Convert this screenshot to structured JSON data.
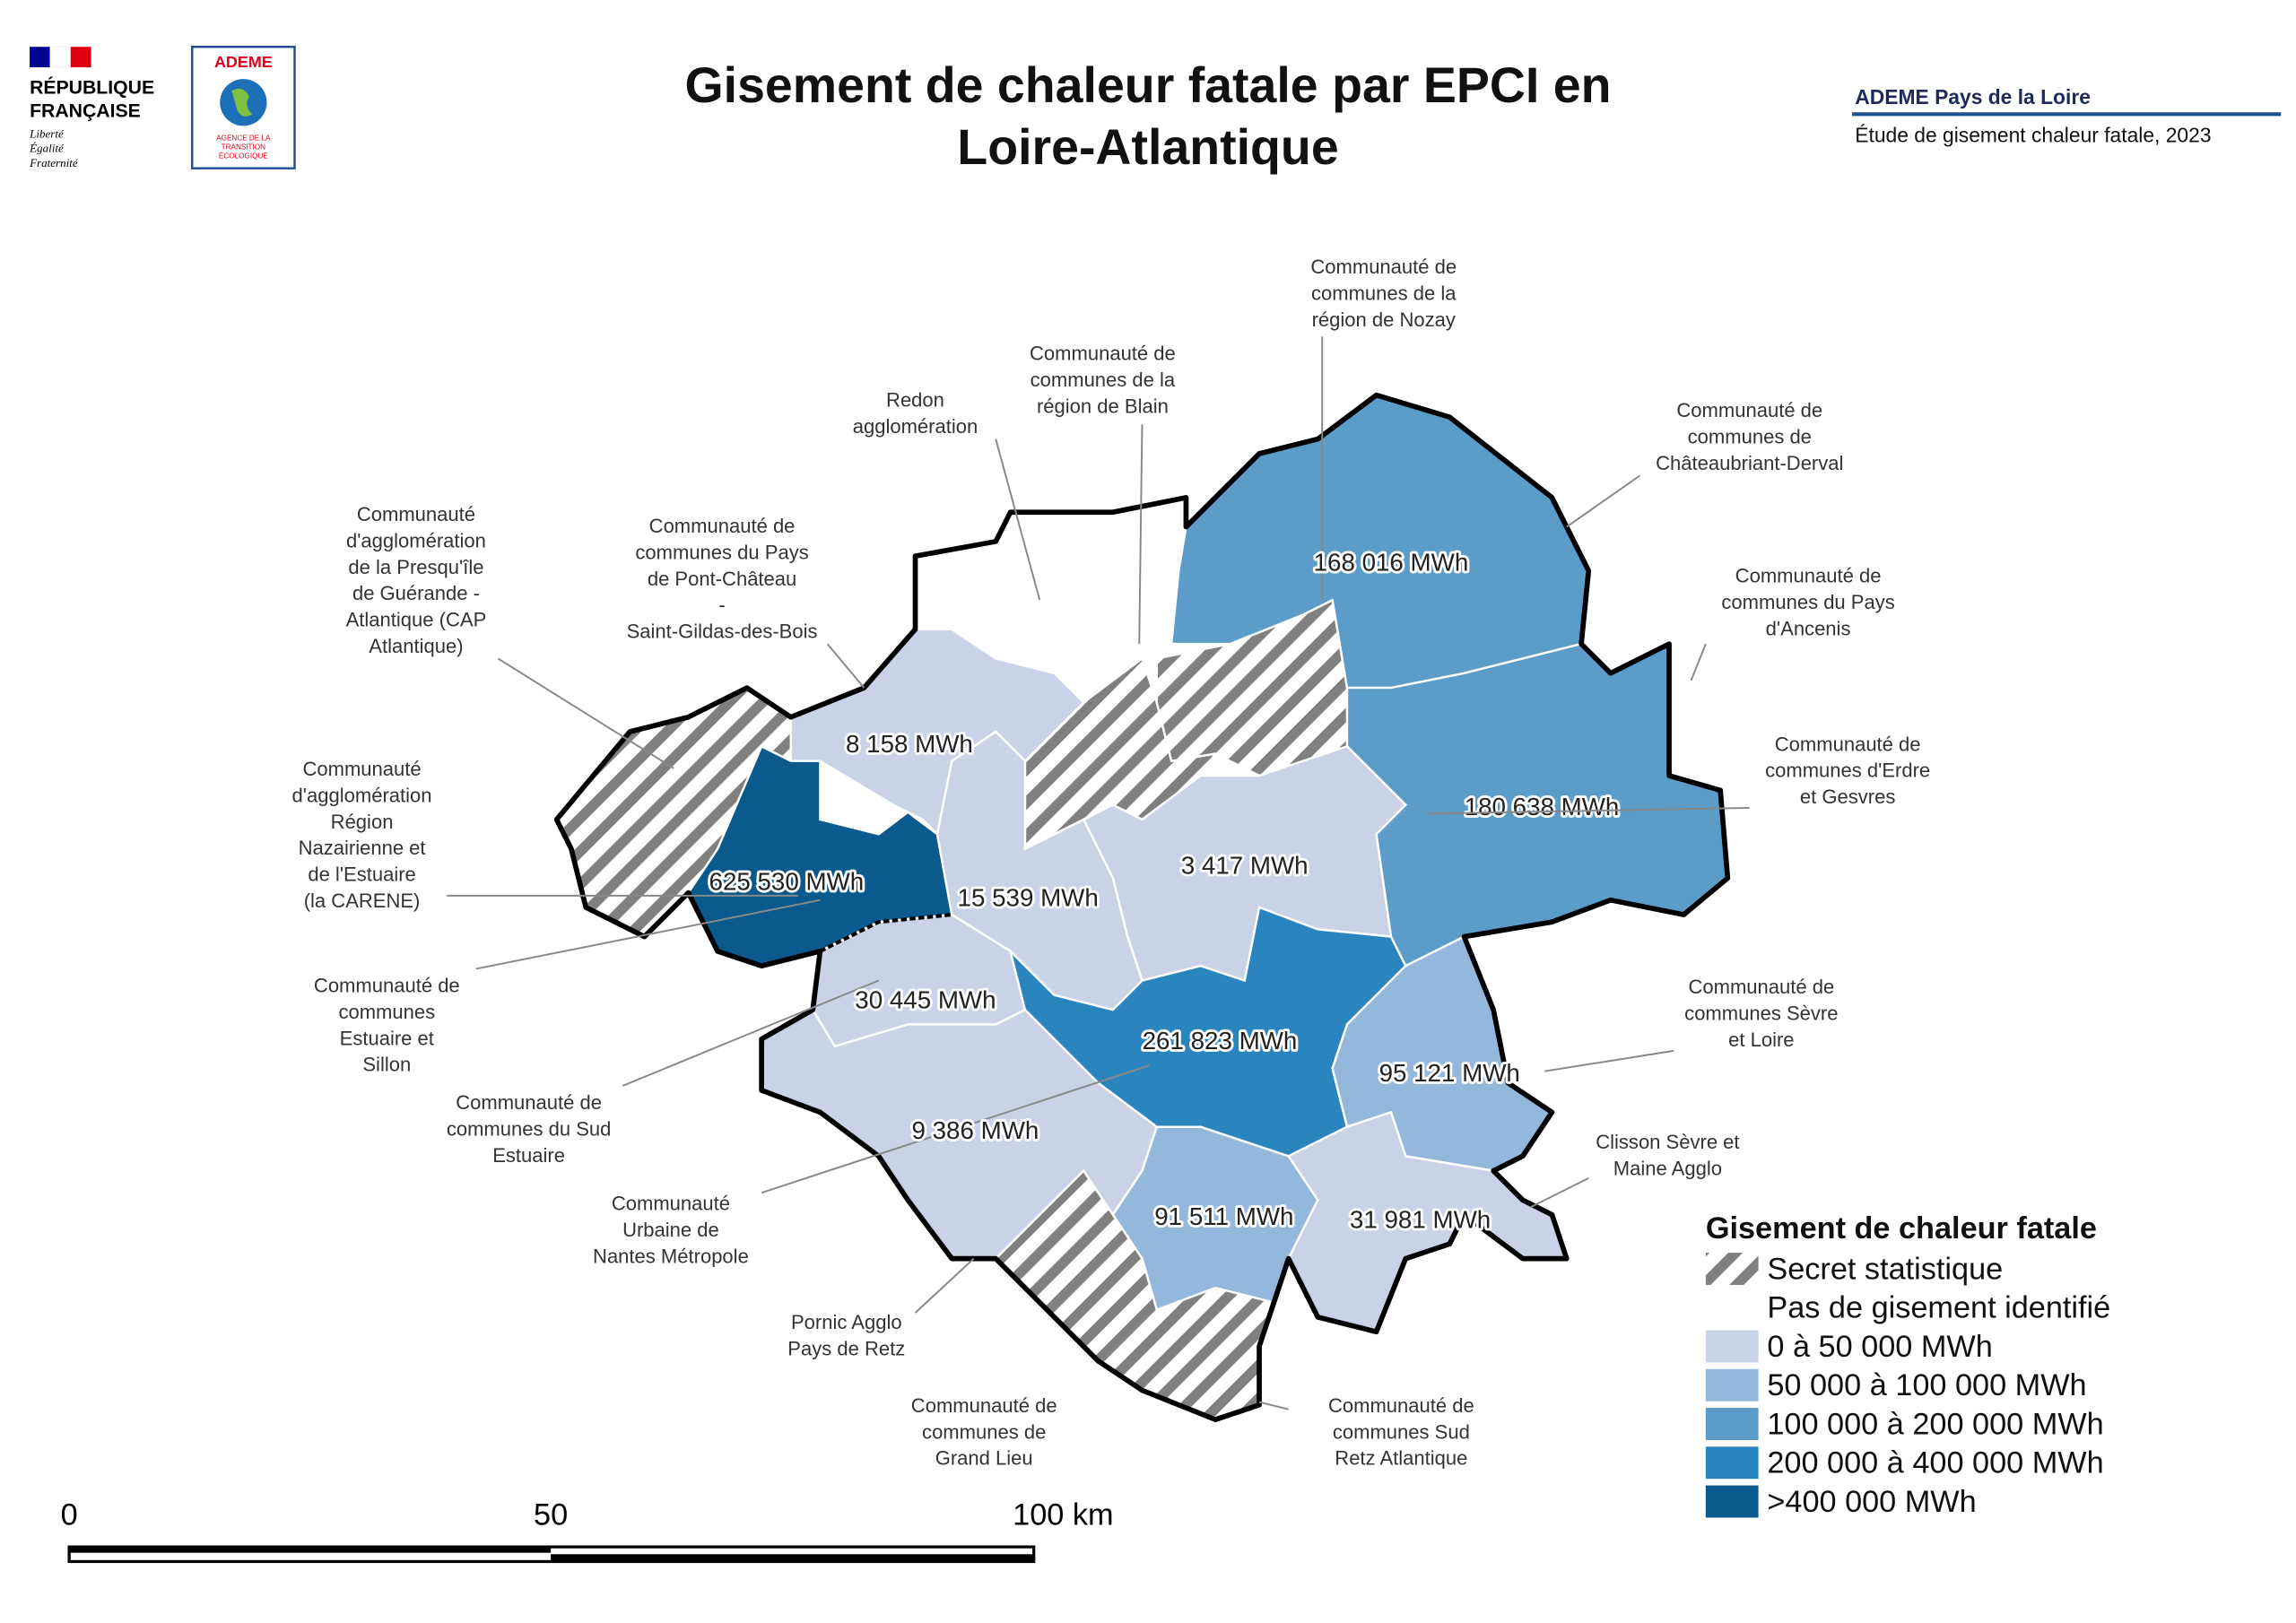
{
  "header": {
    "republique": [
      "RÉPUBLIQUE",
      "FRANÇAISE"
    ],
    "devise": [
      "Liberté",
      "Égalité",
      "Fraternité"
    ],
    "ademe": "ADEME",
    "ademe_sub": [
      "AGENCE DE LA",
      "TRANSITION",
      "ÉCOLOGIQUE"
    ],
    "title": [
      "Gisement de chaleur fatale par EPCI en",
      "Loire-Atlantique"
    ],
    "source": "ADEME Pays de la Loire",
    "study": "Étude de gisement chaleur fatale, 2023"
  },
  "regions": [
    {
      "name": [
        "Redon",
        "agglomération"
      ],
      "value": null
    },
    {
      "name": [
        "Communauté de",
        "communes de la",
        "région de Blain"
      ],
      "value": null
    },
    {
      "name": [
        "Communauté de",
        "communes de la",
        "région de Nozay"
      ],
      "value": null
    },
    {
      "name": [
        "Communauté de",
        "communes de",
        "Châteaubriant-Derval"
      ],
      "value": "168 016 MWh"
    },
    {
      "name": [
        "Communauté de",
        "communes du Pays",
        "d'Ancenis"
      ],
      "value": "180 638 MWh"
    },
    {
      "name": [
        "Communauté de",
        "communes d'Erdre",
        "et Gesvres"
      ],
      "value": "3 417 MWh"
    },
    {
      "name": [
        "Communauté de",
        "communes du Pays",
        "de Pont-Château",
        "-",
        "Saint-Gildas-des-Bois"
      ],
      "value": "8 158 MWh"
    },
    {
      "name": [
        "Communauté",
        "d'agglomération",
        "de la Presqu'île",
        "de Guérande -",
        "Atlantique (CAP",
        "Atlantique)"
      ],
      "value": null
    },
    {
      "name": [
        "Communauté",
        "d'agglomération",
        "Région",
        "Nazairienne et",
        "de l'Estuaire",
        "(la CARENE)"
      ],
      "value": "625 530 MWh"
    },
    {
      "name": [
        "Communauté de",
        "communes",
        "Estuaire et",
        "Sillon"
      ],
      "value": "15 539 MWh"
    },
    {
      "name": [
        "Communauté de",
        "communes du Sud",
        "Estuaire"
      ],
      "value": "30 445 MWh"
    },
    {
      "name": [
        "Communauté",
        "Urbaine de",
        "Nantes Métropole"
      ],
      "value": "261 823 MWh"
    },
    {
      "name": [
        "Pornic Agglo",
        "Pays de Retz"
      ],
      "value": "9 386 MWh"
    },
    {
      "name": [
        "Communauté de",
        "communes de",
        "Grand Lieu"
      ],
      "value": "91 511 MWh"
    },
    {
      "name": [
        "Communauté de",
        "communes Sud",
        "Retz Atlantique"
      ],
      "value": null
    },
    {
      "name": [
        "Communauté de",
        "communes Sèvre",
        "et Loire"
      ],
      "value": "95 121 MWh"
    },
    {
      "name": [
        "Clisson Sèvre et",
        "Maine Agglo"
      ],
      "value": "31 981 MWh"
    }
  ],
  "legend": {
    "title": "Gisement de chaleur fatale",
    "items": [
      {
        "label": "Secret statistique",
        "color": "#808080"
      },
      {
        "label": "Pas de gisement identifié",
        "color": "#ffffff"
      },
      {
        "label": "0 à 50 000 MWh",
        "color": "#c9d2e7"
      },
      {
        "label": "50 000 à 100 000 MWh",
        "color": "#93b8db"
      },
      {
        "label": "100 000 à 200 000 MWh",
        "color": "#5b9cc9"
      },
      {
        "label": "200 000 à 400 000 MWh",
        "color": "#2a85bf"
      },
      {
        "label": ">400 000 MWh",
        "color": "#0b5a8e"
      }
    ]
  },
  "scale_bar": {
    "labels": [
      "0",
      "50",
      "100 km"
    ]
  }
}
